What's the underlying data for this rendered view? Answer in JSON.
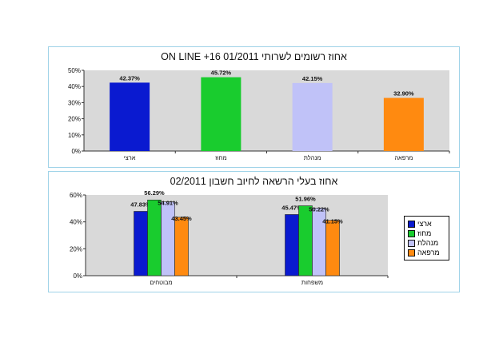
{
  "chart_data": [
    {
      "type": "bar",
      "title": "אחוז רשומים לשרותי ON LINE +16 01/2011",
      "categories": [
        "ארצי",
        "מחוז",
        "מנהלת",
        "מרפאה"
      ],
      "values": [
        42.37,
        45.72,
        42.15,
        32.9
      ],
      "value_labels": [
        "42.37%",
        "45.72%",
        "42.15%",
        "32.90%"
      ],
      "bar_colors": [
        "#0a1ad0",
        "#19cc2e",
        "#c0c2f8",
        "#ff8a10"
      ],
      "yticks": [
        "0%",
        "10%",
        "20%",
        "30%",
        "40%",
        "50%"
      ],
      "ylim": [
        0,
        50
      ],
      "grid": false,
      "legend": "none"
    },
    {
      "type": "bar",
      "title": "אחוז בעלי הרשאה לחיוב חשבון 02/2011",
      "categories": [
        "מבוטחים",
        "משפחות"
      ],
      "series": [
        {
          "name": "ארצי",
          "color": "#0a1ad0",
          "values": [
            47.83,
            45.47
          ],
          "labels": [
            "47.83%",
            "45.47%"
          ]
        },
        {
          "name": "מחוז",
          "color": "#19cc2e",
          "values": [
            56.29,
            51.96
          ],
          "labels": [
            "56.29%",
            "51.96%"
          ]
        },
        {
          "name": "מנהלת",
          "color": "#c0c2f8",
          "values": [
            54.91,
            50.22
          ],
          "labels": [
            "54.91%",
            "50.22%"
          ]
        },
        {
          "name": "מרפאה",
          "color": "#ff8a10",
          "values": [
            43.45,
            41.15
          ],
          "labels": [
            "43.45%",
            "41.15%"
          ]
        }
      ],
      "yticks": [
        "0%",
        "20%",
        "40%",
        "60%"
      ],
      "ylim": [
        0,
        60
      ],
      "grid": false,
      "legend": "right"
    }
  ]
}
